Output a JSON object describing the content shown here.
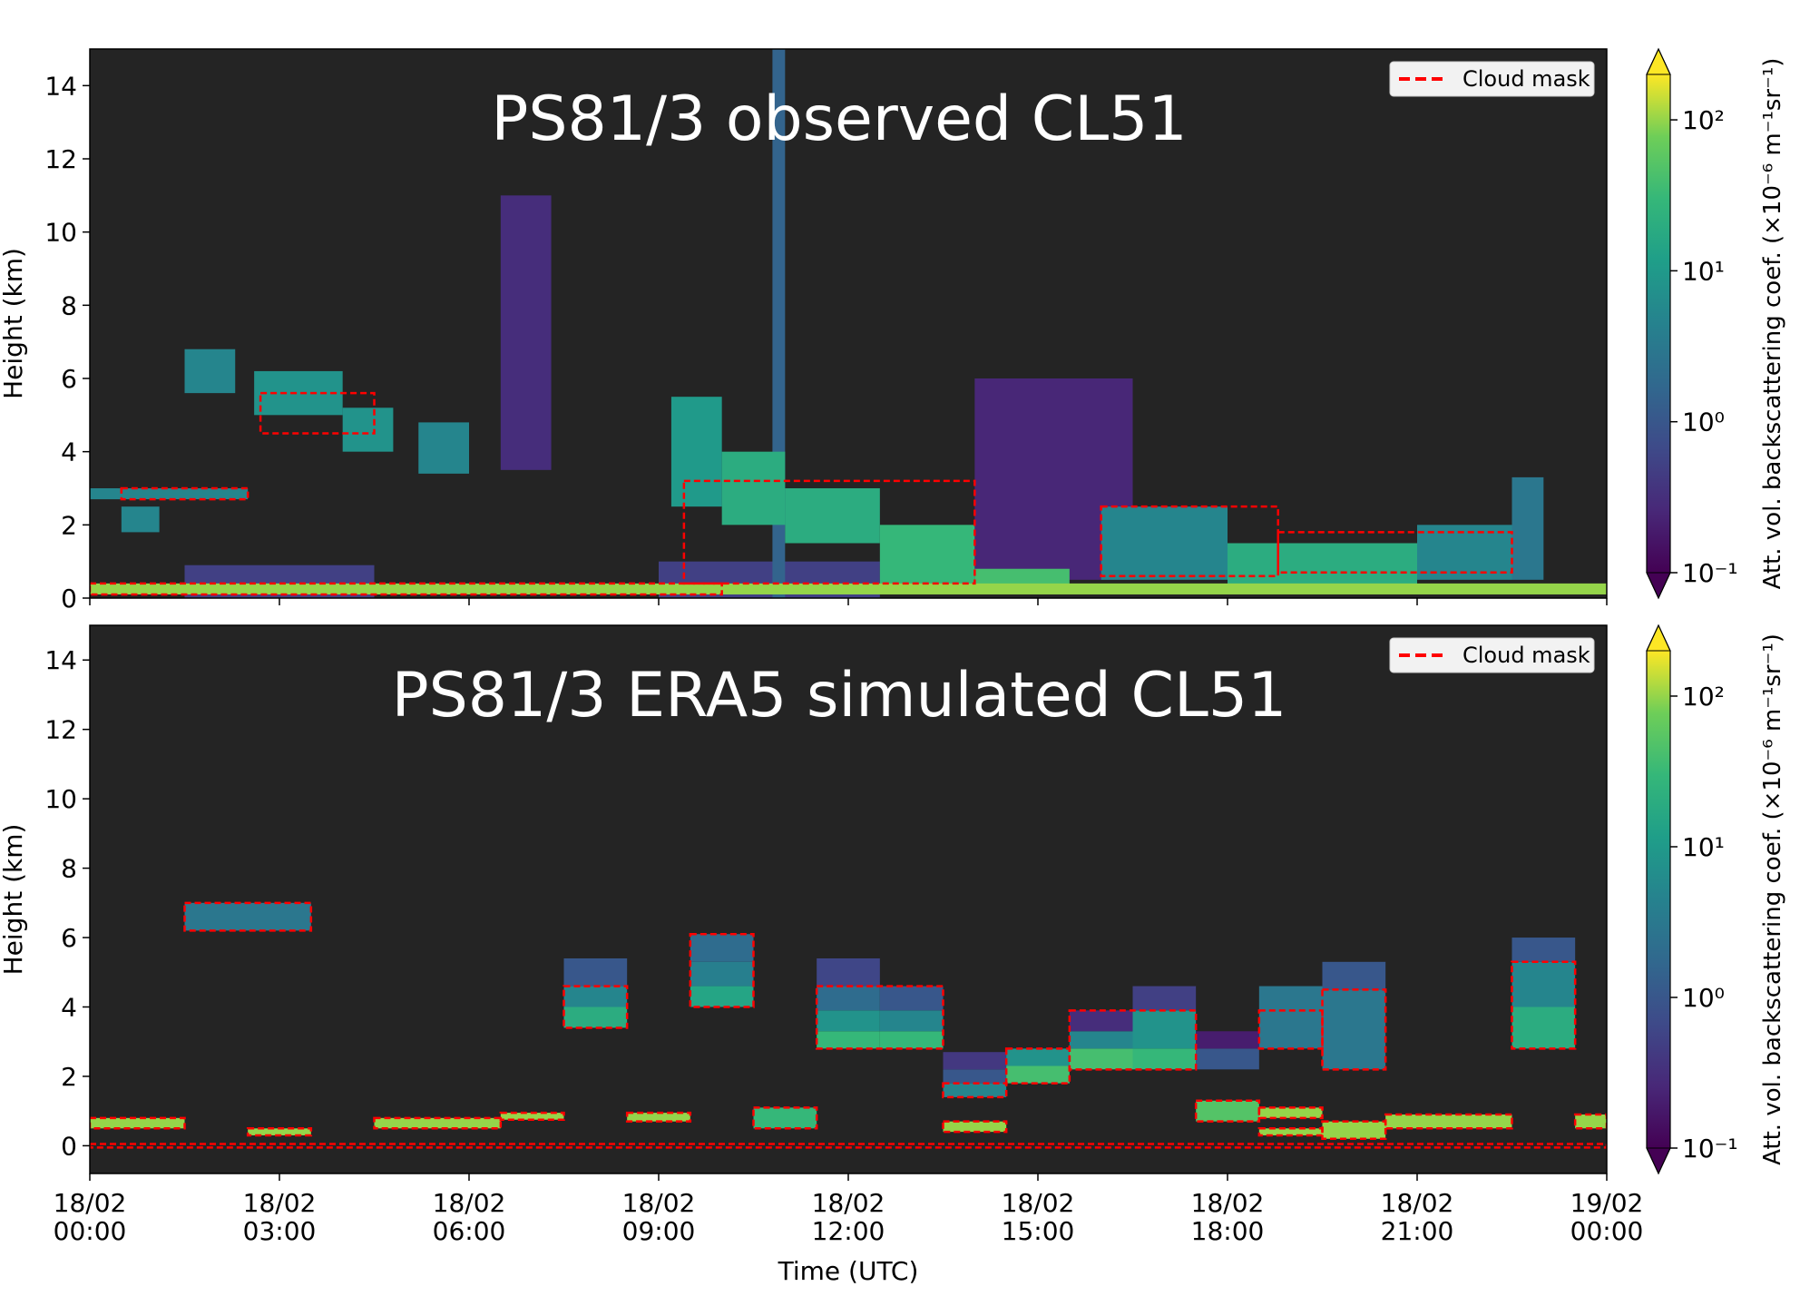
{
  "chart_data": [
    {
      "type": "heatmap",
      "title": "PS81/3 observed CL51",
      "ylabel": "Height (km)",
      "xlim": [
        0,
        24
      ],
      "xticks": [
        0,
        3,
        6,
        9,
        12,
        15,
        18,
        21,
        24
      ],
      "ylim": [
        0,
        15
      ],
      "yticks": [
        0,
        2,
        4,
        6,
        8,
        10,
        12,
        14
      ],
      "background": "#242424",
      "colorbar": {
        "label": "Att. vol. backscattering coef. (×10⁻⁶ m⁻¹sr⁻¹)",
        "log": true,
        "clim": [
          0.1,
          200
        ],
        "ticks": [
          {
            "value": 0.1,
            "label": "10⁻¹"
          },
          {
            "value": 1,
            "label": "10⁰"
          },
          {
            "value": 10,
            "label": "10¹"
          },
          {
            "value": 100,
            "label": "10²"
          }
        ]
      },
      "legend": {
        "label": "Cloud mask",
        "color": "#ff0000",
        "loc": "upper right"
      },
      "cells": [
        {
          "x": [
            14,
            16.5
          ],
          "y": [
            0.5,
            6
          ],
          "value": 0.25
        },
        {
          "x": [
            6.5,
            7.3
          ],
          "y": [
            3.5,
            11
          ],
          "value": 0.3
        },
        {
          "x": [
            1.5,
            4.5
          ],
          "y": [
            0,
            0.9
          ],
          "value": 0.5
        },
        {
          "x": [
            9,
            12.5
          ],
          "y": [
            0,
            1
          ],
          "value": 0.5
        },
        {
          "x": [
            10.8,
            11
          ],
          "y": [
            0,
            15
          ],
          "value": 1.5
        },
        {
          "x": [
            0,
            2.5
          ],
          "y": [
            2.7,
            3
          ],
          "value": 5
        },
        {
          "x": [
            0.5,
            1.1
          ],
          "y": [
            1.8,
            2.5
          ],
          "value": 5
        },
        {
          "x": [
            1.5,
            2.3
          ],
          "y": [
            5.6,
            6.8
          ],
          "value": 5
        },
        {
          "x": [
            2.6,
            4
          ],
          "y": [
            5,
            6.2
          ],
          "value": 8
        },
        {
          "x": [
            4,
            4.8
          ],
          "y": [
            4,
            5.2
          ],
          "value": 8
        },
        {
          "x": [
            5.2,
            6
          ],
          "y": [
            3.4,
            4.8
          ],
          "value": 5
        },
        {
          "x": [
            9.2,
            10
          ],
          "y": [
            2.5,
            5.5
          ],
          "value": 10
        },
        {
          "x": [
            10,
            11
          ],
          "y": [
            2,
            4
          ],
          "value": 20
        },
        {
          "x": [
            11,
            12.5
          ],
          "y": [
            1.5,
            3
          ],
          "value": 20
        },
        {
          "x": [
            12.5,
            14
          ],
          "y": [
            0.3,
            2
          ],
          "value": 30
        },
        {
          "x": [
            14,
            15.5
          ],
          "y": [
            0.2,
            0.8
          ],
          "value": 40
        },
        {
          "x": [
            16,
            18
          ],
          "y": [
            0.5,
            2.5
          ],
          "value": 5
        },
        {
          "x": [
            18,
            21
          ],
          "y": [
            0.3,
            1.5
          ],
          "value": 20
        },
        {
          "x": [
            21,
            22.5
          ],
          "y": [
            0.5,
            2
          ],
          "value": 5
        },
        {
          "x": [
            22.5,
            23
          ],
          "y": [
            0.5,
            3.3
          ],
          "value": 3
        },
        {
          "x": [
            0,
            24
          ],
          "y": [
            0.1,
            0.4
          ],
          "value": 100
        }
      ],
      "cloud_mask": [
        [
          0.5,
          2.5,
          2.7,
          3
        ],
        [
          2.7,
          4.5,
          4.5,
          5.6
        ],
        [
          9.4,
          14,
          0.4,
          3.2
        ],
        [
          16,
          18.8,
          0.6,
          2.5
        ],
        [
          18.8,
          22.5,
          0.7,
          1.8
        ],
        [
          0,
          10,
          0.1,
          0.4
        ]
      ]
    },
    {
      "type": "heatmap",
      "title": "PS81/3 ERA5 simulated CL51",
      "ylabel": "Height (km)",
      "xlabel": "Time (UTC)",
      "xlim": [
        0,
        24
      ],
      "xticks": [
        {
          "value": 0,
          "label": "18/02\n00:00"
        },
        {
          "value": 3,
          "label": "18/02\n03:00"
        },
        {
          "value": 6,
          "label": "18/02\n06:00"
        },
        {
          "value": 9,
          "label": "18/02\n09:00"
        },
        {
          "value": 12,
          "label": "18/02\n12:00"
        },
        {
          "value": 15,
          "label": "18/02\n15:00"
        },
        {
          "value": 18,
          "label": "18/02\n18:00"
        },
        {
          "value": 21,
          "label": "18/02\n21:00"
        },
        {
          "value": 24,
          "label": "19/02\n00:00"
        }
      ],
      "ylim": [
        -0.8,
        15
      ],
      "yticks": [
        0,
        2,
        4,
        6,
        8,
        10,
        12,
        14
      ],
      "background": "#242424",
      "colorbar": {
        "label": "Att. vol. backscattering coef. (×10⁻⁶ m⁻¹sr⁻¹)",
        "log": true,
        "clim": [
          0.1,
          200
        ],
        "ticks": [
          {
            "value": 0.1,
            "label": "10⁻¹"
          },
          {
            "value": 1,
            "label": "10⁰"
          },
          {
            "value": 10,
            "label": "10¹"
          },
          {
            "value": 100,
            "label": "10²"
          }
        ]
      },
      "legend": {
        "label": "Cloud mask",
        "color": "#ff0000",
        "loc": "upper right"
      },
      "cells": [
        {
          "x": [
            0,
            1.5
          ],
          "y": [
            0.5,
            0.8
          ],
          "value": 100
        },
        {
          "x": [
            1.5,
            3.5
          ],
          "y": [
            6.2,
            7
          ],
          "value": 3
        },
        {
          "x": [
            2.5,
            3.5
          ],
          "y": [
            0.3,
            0.5
          ],
          "value": 100
        },
        {
          "x": [
            4.5,
            6.5
          ],
          "y": [
            0.5,
            0.8
          ],
          "value": 100
        },
        {
          "x": [
            6.5,
            7.5
          ],
          "y": [
            0.75,
            0.95
          ],
          "value": 100
        },
        {
          "x": [
            7.5,
            8.5
          ],
          "y": [
            3.4,
            4
          ],
          "value": 20
        },
        {
          "x": [
            7.5,
            8.5
          ],
          "y": [
            4,
            4.6
          ],
          "value": 5
        },
        {
          "x": [
            7.5,
            8.5
          ],
          "y": [
            4.6,
            5.4
          ],
          "value": 1
        },
        {
          "x": [
            8.5,
            9.5
          ],
          "y": [
            0.7,
            0.95
          ],
          "value": 100
        },
        {
          "x": [
            9.5,
            10.5
          ],
          "y": [
            4,
            4.6
          ],
          "value": 15
        },
        {
          "x": [
            9.5,
            10.5
          ],
          "y": [
            4.6,
            5.3
          ],
          "value": 4
        },
        {
          "x": [
            9.5,
            10.5
          ],
          "y": [
            5.3,
            6.1
          ],
          "value": 2
        },
        {
          "x": [
            10.5,
            11.5
          ],
          "y": [
            0.5,
            1.1
          ],
          "value": 30
        },
        {
          "x": [
            11.5,
            12.5
          ],
          "y": [
            2.8,
            3.3
          ],
          "value": 30
        },
        {
          "x": [
            11.5,
            12.5
          ],
          "y": [
            3.3,
            3.9
          ],
          "value": 8
        },
        {
          "x": [
            11.5,
            12.5
          ],
          "y": [
            3.9,
            4.6
          ],
          "value": 2
        },
        {
          "x": [
            11.5,
            12.5
          ],
          "y": [
            4.6,
            5.4
          ],
          "value": 0.6
        },
        {
          "x": [
            12.5,
            13.5
          ],
          "y": [
            2.8,
            3.3
          ],
          "value": 30
        },
        {
          "x": [
            12.5,
            13.5
          ],
          "y": [
            3.3,
            3.9
          ],
          "value": 5
        },
        {
          "x": [
            12.5,
            13.5
          ],
          "y": [
            3.9,
            4.6
          ],
          "value": 1
        },
        {
          "x": [
            13.5,
            14.5
          ],
          "y": [
            1.4,
            1.8
          ],
          "value": 5
        },
        {
          "x": [
            13.5,
            14.5
          ],
          "y": [
            1.8,
            2.2
          ],
          "value": 1
        },
        {
          "x": [
            13.5,
            14.5
          ],
          "y": [
            2.2,
            2.7
          ],
          "value": 0.4
        },
        {
          "x": [
            13.5,
            14.5
          ],
          "y": [
            0.4,
            0.7
          ],
          "value": 100
        },
        {
          "x": [
            14.5,
            15.5
          ],
          "y": [
            1.8,
            2.3
          ],
          "value": 40
        },
        {
          "x": [
            14.5,
            15.5
          ],
          "y": [
            2.3,
            2.8
          ],
          "value": 8
        },
        {
          "x": [
            15.5,
            16.5
          ],
          "y": [
            2.2,
            2.8
          ],
          "value": 40
        },
        {
          "x": [
            15.5,
            16.5
          ],
          "y": [
            2.8,
            3.3
          ],
          "value": 5
        },
        {
          "x": [
            15.5,
            16.5
          ],
          "y": [
            3.3,
            3.9
          ],
          "value": 0.3
        },
        {
          "x": [
            16.5,
            17.5
          ],
          "y": [
            2.2,
            2.8
          ],
          "value": 30
        },
        {
          "x": [
            16.5,
            17.5
          ],
          "y": [
            2.8,
            3.9
          ],
          "value": 8
        },
        {
          "x": [
            16.5,
            17.5
          ],
          "y": [
            3.9,
            4.6
          ],
          "value": 0.5
        },
        {
          "x": [
            17.5,
            18.5
          ],
          "y": [
            2.2,
            2.8
          ],
          "value": 1
        },
        {
          "x": [
            17.5,
            18.5
          ],
          "y": [
            2.8,
            3.3
          ],
          "value": 0.2
        },
        {
          "x": [
            17.5,
            18.5
          ],
          "y": [
            0.7,
            1.3
          ],
          "value": 50
        },
        {
          "x": [
            18.5,
            19.5
          ],
          "y": [
            2.8,
            4.6
          ],
          "value": 3
        },
        {
          "x": [
            18.5,
            19.5
          ],
          "y": [
            0.3,
            0.5
          ],
          "value": 100
        },
        {
          "x": [
            18.5,
            19.5
          ],
          "y": [
            0.8,
            1.1
          ],
          "value": 100
        },
        {
          "x": [
            19.5,
            20.5
          ],
          "y": [
            2.2,
            4.5
          ],
          "value": 3
        },
        {
          "x": [
            19.5,
            20.5
          ],
          "y": [
            4.5,
            5.3
          ],
          "value": 1
        },
        {
          "x": [
            19.5,
            20.5
          ],
          "y": [
            0.2,
            0.7
          ],
          "value": 100
        },
        {
          "x": [
            20.5,
            22.5
          ],
          "y": [
            0.5,
            0.9
          ],
          "value": 100
        },
        {
          "x": [
            22.5,
            23.5
          ],
          "y": [
            2.8,
            4
          ],
          "value": 20
        },
        {
          "x": [
            22.5,
            23.5
          ],
          "y": [
            4,
            5.3
          ],
          "value": 5
        },
        {
          "x": [
            22.5,
            23.5
          ],
          "y": [
            5.3,
            6
          ],
          "value": 1
        },
        {
          "x": [
            23.5,
            24
          ],
          "y": [
            0.5,
            0.9
          ],
          "value": 100
        }
      ],
      "cloud_mask": [
        [
          0,
          1.5,
          0.5,
          0.8
        ],
        [
          1.5,
          3.5,
          6.2,
          7
        ],
        [
          2.5,
          3.5,
          0.3,
          0.5
        ],
        [
          4.5,
          6.5,
          0.5,
          0.8
        ],
        [
          6.5,
          7.5,
          0.75,
          0.95
        ],
        [
          7.5,
          8.5,
          3.4,
          4.6
        ],
        [
          8.5,
          9.5,
          0.7,
          0.95
        ],
        [
          9.5,
          10.5,
          4,
          6.1
        ],
        [
          10.5,
          11.5,
          0.5,
          1.1
        ],
        [
          11.5,
          13.5,
          2.8,
          4.6
        ],
        [
          13.5,
          14.5,
          1.4,
          1.8
        ],
        [
          13.5,
          14.5,
          0.4,
          0.7
        ],
        [
          14.5,
          15.5,
          1.8,
          2.8
        ],
        [
          15.5,
          17.5,
          2.2,
          3.9
        ],
        [
          17.5,
          18.5,
          0.7,
          1.3
        ],
        [
          18.5,
          19.5,
          2.8,
          3.9
        ],
        [
          18.5,
          19.5,
          0.3,
          0.5
        ],
        [
          18.5,
          19.5,
          0.8,
          1.1
        ],
        [
          19.5,
          20.5,
          2.2,
          4.5
        ],
        [
          19.5,
          20.5,
          0.2,
          0.7
        ],
        [
          20.5,
          22.5,
          0.5,
          0.9
        ],
        [
          22.5,
          23.5,
          2.8,
          5.3
        ],
        [
          23.5,
          24,
          0.5,
          0.9
        ],
        [
          0,
          24,
          -0.05,
          0.05
        ]
      ]
    }
  ]
}
